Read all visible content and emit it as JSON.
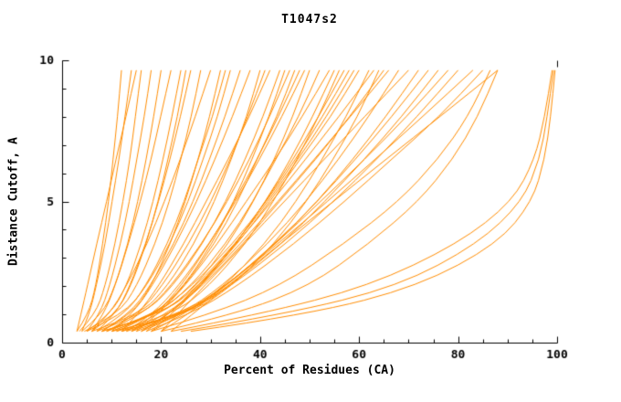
{
  "chart_data": {
    "type": "line",
    "title": "T1047s2",
    "xlabel": "Percent of Residues (CA)",
    "ylabel": "Distance Cutoff, A",
    "xlim": [
      0,
      100
    ],
    "ylim": [
      0,
      10
    ],
    "x_ticks": [
      0,
      20,
      40,
      60,
      80,
      100
    ],
    "y_ticks": [
      0,
      5,
      10
    ],
    "x_minor_step": 5,
    "y_minor_step": 1,
    "grid": false,
    "legend": "none",
    "line_color": "#ff8c00",
    "axis_color": "#000000",
    "curve_format": "each curve is the list of x values (percent of residues) sampled at the shared y_levels (distance cutoff, A)",
    "y_levels": [
      0.4,
      1,
      2,
      3.5,
      5,
      6.5,
      8,
      9.65
    ],
    "curves": [
      [
        3,
        5.3,
        6.8,
        8.2,
        9.4,
        10.3,
        11.2,
        12
      ],
      [
        4,
        5.5,
        6.9,
        8.7,
        10.1,
        11.5,
        12.7,
        14
      ],
      [
        3.5,
        6.7,
        8.7,
        10.7,
        12.3,
        13.7,
        14.8,
        16
      ],
      [
        5,
        7.6,
        9.6,
        11.8,
        13.6,
        15.1,
        16.6,
        18
      ],
      [
        4,
        8.1,
        10.7,
        13.3,
        15.3,
        17,
        18.5,
        20
      ],
      [
        6,
        8.4,
        10.7,
        13.4,
        15.8,
        18,
        19.9,
        22
      ],
      [
        5,
        9.8,
        13,
        16,
        18.4,
        20.4,
        22.2,
        24
      ],
      [
        7,
        10.8,
        13.7,
        16.9,
        19.5,
        21.8,
        23.9,
        26
      ],
      [
        4.5,
        11.3,
        15.1,
        18.8,
        21.7,
        24,
        26.1,
        28
      ],
      [
        6,
        9.5,
        13,
        17.2,
        20.7,
        23.9,
        26.9,
        30
      ],
      [
        8,
        14.1,
        18,
        21.9,
        24.9,
        27.5,
        29.8,
        32
      ],
      [
        3,
        3.8,
        5.1,
        7,
        9,
        10.9,
        12.9,
        15
      ],
      [
        5,
        12.4,
        17.1,
        21.8,
        25.5,
        28.5,
        31.4,
        34
      ],
      [
        8,
        13.6,
        17.8,
        22.6,
        26.5,
        29.8,
        32.9,
        36
      ],
      [
        10,
        14.1,
        18.2,
        23,
        27.2,
        30.9,
        34.4,
        38
      ],
      [
        6,
        15.9,
        21.3,
        26.7,
        30.8,
        34.2,
        37.3,
        40
      ],
      [
        12,
        15.3,
        19.5,
        24.6,
        29.1,
        33.6,
        37.8,
        42
      ],
      [
        7,
        16.4,
        22.4,
        28.4,
        33.1,
        37,
        40.6,
        44
      ],
      [
        9,
        16.4,
        22,
        28.2,
        33.4,
        37.9,
        41.9,
        46
      ],
      [
        14,
        19,
        24,
        29.8,
        34.8,
        39.4,
        43.7,
        48
      ],
      [
        8,
        20.2,
        26.9,
        33.6,
        38.7,
        42.9,
        46.6,
        50
      ],
      [
        10,
        19.2,
        26,
        33.1,
        38.6,
        43.2,
        47.8,
        52
      ],
      [
        15,
        19.3,
        24.8,
        31.4,
        37.2,
        43.1,
        48.5,
        54
      ],
      [
        11,
        22.5,
        29.7,
        37.1,
        42.7,
        47.5,
        51.8,
        56
      ],
      [
        9,
        18.8,
        26.2,
        34.5,
        41.3,
        47.2,
        52.6,
        58
      ],
      [
        16,
        21.7,
        27.9,
        35.4,
        42,
        48.1,
        54.3,
        60
      ],
      [
        12,
        24.8,
        32.8,
        41,
        47.3,
        52.6,
        57.4,
        62
      ],
      [
        10,
        25.7,
        34.3,
        42.9,
        49.4,
        54.8,
        59.7,
        64
      ],
      [
        18,
        22.1,
        27.9,
        36,
        43.6,
        51,
        58.2,
        66
      ],
      [
        13,
        24,
        32.3,
        41.6,
        49.3,
        55.9,
        61.9,
        68
      ],
      [
        20,
        23.3,
        28.7,
        36.8,
        44.9,
        53,
        61.1,
        70
      ],
      [
        14,
        21.3,
        27.8,
        35.1,
        41.1,
        46.7,
        51.8,
        57
      ],
      [
        17,
        21.5,
        27.4,
        35.2,
        42.4,
        49.2,
        55.9,
        63
      ],
      [
        11,
        18.9,
        24.7,
        30.8,
        35.5,
        39.4,
        43.4,
        47
      ],
      [
        12,
        24,
        33,
        43.2,
        51.6,
        58.8,
        65.4,
        72
      ],
      [
        16,
        24.5,
        33,
        43,
        51.6,
        59.3,
        66.6,
        74
      ],
      [
        14,
        24.5,
        33.8,
        44.4,
        53.1,
        61.1,
        68.6,
        76
      ],
      [
        18,
        24.6,
        33,
        43.2,
        52.2,
        61.2,
        69.6,
        78
      ],
      [
        15,
        24.6,
        34.1,
        45.2,
        54.9,
        63.6,
        71.7,
        80
      ],
      [
        20,
        25.4,
        33,
        43.6,
        53.6,
        63.3,
        72.8,
        83
      ],
      [
        17,
        25.8,
        35.4,
        46.9,
        57.1,
        66.6,
        76.2,
        85
      ],
      [
        22,
        26.3,
        33.4,
        44.1,
        54.8,
        65.5,
        76.3,
        88
      ],
      [
        20,
        35,
        50,
        62,
        72,
        79,
        84,
        88
      ],
      [
        18,
        30,
        44,
        57,
        68,
        76,
        82,
        86.5
      ],
      [
        24,
        45,
        68,
        84,
        93,
        96.5,
        98,
        99.3
      ],
      [
        26,
        50,
        72,
        88,
        95,
        97.5,
        98.7,
        99.6
      ],
      [
        22,
        40,
        62,
        80,
        91,
        95.5,
        97.5,
        99
      ],
      [
        6,
        10.8,
        13.9,
        17,
        19.4,
        21.4,
        23.3,
        25
      ],
      [
        7,
        12.7,
        16.9,
        21.3,
        24.7,
        27.5,
        30.4,
        33
      ],
      [
        9,
        15.4,
        20.2,
        25.6,
        30.1,
        34,
        37.5,
        41
      ],
      [
        13,
        18.3,
        23.5,
        29.7,
        35.1,
        39.9,
        44.4,
        49
      ],
      [
        8,
        20,
        27.6,
        35.2,
        41.1,
        46.2,
        50.6,
        55
      ],
      [
        12,
        20,
        27,
        35,
        41.6,
        47.7,
        53.4,
        59
      ],
      [
        16,
        21.4,
        28.3,
        36.6,
        43.9,
        51.3,
        58.1,
        65
      ],
      [
        10,
        18.9,
        24.6,
        30.3,
        34.7,
        38.4,
        41.8,
        45
      ]
    ]
  }
}
